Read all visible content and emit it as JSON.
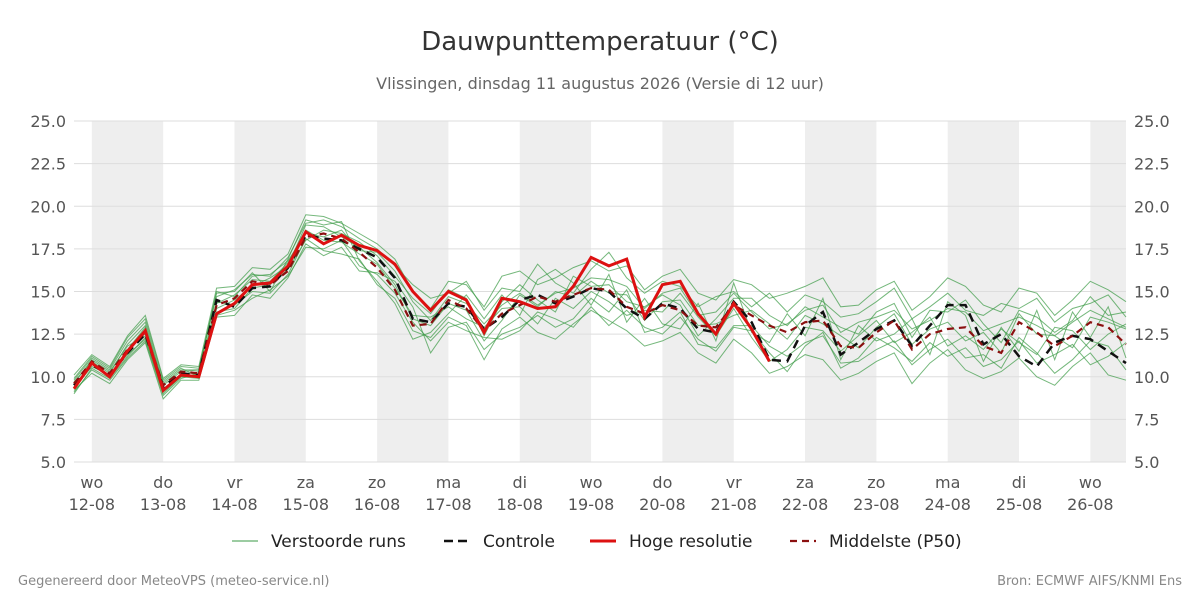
{
  "footer": {
    "left": "Gegenereerd door MeteoVPS (meteo-service.nl)",
    "right": "Bron: ECMWF AIFS/KNMI Ens"
  },
  "chart_data": {
    "type": "line",
    "title": "Dauwpunttemperatuur (°C)",
    "subtitle": "Vlissingen, dinsdag 11 augustus 2026 (Versie di 12 uur)",
    "ylim": [
      5.0,
      25.0
    ],
    "yticks": [
      "5.0",
      "7.5",
      "10.0",
      "12.5",
      "15.0",
      "17.5",
      "20.0",
      "22.5",
      "25.0"
    ],
    "xlim": [
      -0.25,
      14.5
    ],
    "xticks": [
      {
        "day": "wo",
        "date": "12-08"
      },
      {
        "day": "do",
        "date": "13-08"
      },
      {
        "day": "vr",
        "date": "14-08"
      },
      {
        "day": "za",
        "date": "15-08"
      },
      {
        "day": "zo",
        "date": "16-08"
      },
      {
        "day": "ma",
        "date": "17-08"
      },
      {
        "day": "di",
        "date": "18-08"
      },
      {
        "day": "wo",
        "date": "19-08"
      },
      {
        "day": "do",
        "date": "20-08"
      },
      {
        "day": "vr",
        "date": "21-08"
      },
      {
        "day": "za",
        "date": "22-08"
      },
      {
        "day": "zo",
        "date": "23-08"
      },
      {
        "day": "ma",
        "date": "24-08"
      },
      {
        "day": "di",
        "date": "25-08"
      },
      {
        "day": "wo",
        "date": "26-08"
      }
    ],
    "grid": true,
    "legend_position": "bottom",
    "colors": {
      "members": "#3a9a45",
      "control": "#111111",
      "hres": "#dd1111",
      "p50": "#8b1010",
      "band": "#eeeeee",
      "grid": "#dddddd"
    },
    "legend": [
      {
        "name": "Verstoorde runs",
        "style": "thin-green"
      },
      {
        "name": "Controle",
        "style": "dashed-black"
      },
      {
        "name": "Hoge resolutie",
        "style": "solid-red"
      },
      {
        "name": "Middelste (P50)",
        "style": "dashed-darkred"
      }
    ],
    "series": [
      {
        "name": "Hoge resolutie",
        "step": 0.25,
        "x_start": -0.25,
        "values": [
          9.3,
          10.8,
          10.0,
          11.5,
          12.7,
          9.2,
          10.1,
          10.0,
          13.7,
          14.3,
          15.4,
          15.5,
          16.5,
          18.5,
          17.8,
          18.3,
          17.7,
          17.4,
          16.6,
          15.0,
          13.9,
          15.0,
          14.5,
          12.6,
          14.6,
          14.4,
          14.0,
          14.1,
          15.3,
          17.0,
          16.5,
          16.9,
          13.5,
          15.4,
          15.6,
          13.7,
          12.5,
          14.3,
          12.8,
          10.9
        ]
      },
      {
        "name": "Controle",
        "step": 0.25,
        "x_start": -0.25,
        "values": [
          9.5,
          10.7,
          10.1,
          11.4,
          12.5,
          9.4,
          10.2,
          10.1,
          14.5,
          14.1,
          15.2,
          15.3,
          16.4,
          18.3,
          18.1,
          18.0,
          17.5,
          17.0,
          15.8,
          13.4,
          13.2,
          14.3,
          14.1,
          12.8,
          13.5,
          14.5,
          14.8,
          14.3,
          14.7,
          15.2,
          15.0,
          14.0,
          13.4,
          14.3,
          14.0,
          12.8,
          12.6,
          14.4,
          13.2,
          11.0,
          10.9,
          13.0,
          13.8,
          11.3,
          12.0,
          12.8,
          13.3,
          11.8,
          13.0,
          14.2,
          14.2,
          11.9,
          12.5,
          11.2,
          10.6,
          12.0,
          12.4,
          12.2,
          11.5,
          10.8
        ]
      },
      {
        "name": "Middelste (P50)",
        "step": 0.25,
        "x_start": -0.25,
        "values": [
          9.6,
          10.9,
          10.2,
          11.6,
          12.6,
          9.5,
          10.3,
          10.2,
          14.2,
          14.6,
          15.6,
          15.4,
          16.2,
          18.2,
          18.4,
          18.1,
          17.3,
          16.4,
          15.1,
          13.0,
          13.1,
          14.5,
          14.0,
          12.7,
          13.7,
          14.2,
          14.7,
          14.4,
          14.8,
          15.2,
          15.1,
          14.1,
          13.7,
          14.2,
          13.9,
          13.0,
          12.9,
          14.2,
          13.6,
          13.0,
          12.6,
          13.2,
          13.3,
          11.8,
          11.7,
          12.6,
          13.3,
          11.6,
          12.5,
          12.8,
          12.9,
          11.8,
          11.4,
          13.2,
          12.6,
          11.8,
          12.4,
          13.2,
          12.9,
          11.9
        ]
      },
      {
        "name": "Verstoorde runs",
        "step": 0.25,
        "x_start": -0.25,
        "members": [
          [
            9.0,
            10.5,
            9.9,
            11.2,
            12.3,
            9.0,
            10.0,
            10.1,
            14.0,
            14.5,
            15.3,
            15.8,
            16.5,
            18.9,
            18.8,
            18.2,
            17.6,
            16.7,
            15.4,
            13.4,
            13.0,
            14.3,
            13.9,
            12.1,
            13.3,
            14.8,
            14.1,
            15.0,
            14.7,
            15.6,
            14.9,
            14.8,
            13.3,
            14.4,
            14.5,
            13.0,
            13.1,
            13.6,
            13.9,
            13.1,
            12.2,
            13.6,
            13.1,
            12.4,
            11.7,
            12.9,
            13.7,
            11.9,
            12.8,
            13.2,
            12.1,
            12.6,
            11.4,
            13.7,
            12.5,
            12.4,
            11.7,
            13.5,
            13.2,
            12.8
          ],
          [
            9.8,
            11.1,
            10.4,
            12.1,
            13.2,
            9.6,
            10.4,
            10.4,
            14.9,
            15.0,
            16.1,
            15.0,
            16.9,
            19.2,
            18.9,
            19.1,
            16.8,
            15.6,
            14.3,
            12.2,
            12.6,
            13.7,
            14.8,
            13.4,
            14.8,
            13.6,
            15.7,
            16.3,
            15.5,
            14.2,
            16.0,
            13.2,
            14.6,
            13.1,
            12.8,
            14.3,
            12.1,
            15.5,
            12.6,
            12.0,
            13.7,
            12.4,
            14.6,
            11.0,
            13.0,
            12.1,
            12.5,
            13.4,
            11.3,
            14.4,
            13.6,
            10.9,
            12.9,
            11.5,
            13.9,
            11.0,
            13.8,
            12.3,
            14.1,
            11.1
          ],
          [
            9.2,
            10.2,
            9.6,
            11.0,
            12.0,
            8.7,
            9.8,
            9.8,
            13.5,
            13.6,
            14.8,
            14.6,
            15.8,
            17.8,
            17.1,
            17.6,
            16.2,
            16.1,
            15.6,
            14.1,
            11.4,
            12.9,
            13.2,
            11.6,
            12.5,
            12.9,
            13.6,
            12.9,
            13.4,
            14.6,
            13.8,
            15.1,
            12.6,
            12.9,
            13.8,
            11.9,
            11.7,
            13.0,
            13.0,
            11.8,
            11.2,
            12.0,
            12.4,
            10.8,
            10.9,
            11.6,
            12.1,
            10.7,
            11.6,
            12.2,
            11.1,
            11.3,
            10.5,
            12.3,
            11.4,
            10.2,
            11.0,
            12.1,
            11.8,
            10.4
          ],
          [
            10.1,
            11.3,
            10.6,
            12.4,
            13.6,
            9.9,
            10.7,
            10.6,
            15.2,
            15.3,
            16.4,
            16.3,
            17.2,
            19.5,
            19.4,
            19.0,
            18.4,
            17.8,
            16.9,
            15.0,
            14.0,
            15.6,
            15.4,
            14.1,
            15.9,
            16.2,
            15.4,
            15.8,
            16.4,
            16.8,
            16.2,
            16.5,
            15.1,
            15.9,
            16.3,
            14.9,
            14.5,
            15.7,
            15.4,
            14.6,
            14.9,
            15.3,
            15.8,
            14.1,
            14.2,
            15.1,
            15.6,
            13.9,
            14.7,
            15.8,
            15.3,
            14.2,
            13.8,
            15.2,
            14.9,
            13.6,
            14.5,
            15.6,
            15.1,
            14.4
          ],
          [
            9.4,
            10.8,
            10.0,
            11.6,
            12.9,
            9.3,
            10.1,
            10.3,
            14.3,
            14.8,
            15.7,
            15.6,
            16.7,
            18.6,
            18.0,
            17.9,
            17.2,
            16.6,
            15.2,
            13.6,
            13.5,
            14.1,
            13.4,
            12.9,
            14.0,
            14.1,
            13.1,
            14.6,
            14.0,
            15.0,
            14.4,
            13.6,
            13.9,
            13.8,
            14.9,
            13.5,
            12.4,
            14.0,
            12.3,
            10.9,
            11.6,
            12.9,
            12.7,
            11.5,
            12.4,
            13.3,
            12.0,
            12.6,
            13.5,
            11.8,
            12.4,
            11.6,
            12.8,
            12.0,
            11.3,
            12.9,
            12.7,
            11.6,
            12.5,
            13.1
          ],
          [
            9.6,
            11.0,
            10.3,
            11.8,
            12.4,
            9.7,
            10.5,
            10.0,
            13.8,
            14.0,
            15.2,
            15.4,
            16.3,
            18.0,
            18.6,
            18.4,
            17.9,
            17.1,
            15.9,
            14.6,
            13.7,
            15.1,
            14.6,
            12.4,
            14.4,
            15.4,
            14.5,
            13.8,
            15.9,
            15.3,
            15.4,
            14.4,
            14.1,
            14.8,
            14.2,
            12.4,
            13.4,
            14.6,
            14.6,
            13.6,
            13.0,
            14.1,
            13.5,
            12.9,
            12.5,
            13.8,
            14.3,
            12.3,
            13.9,
            13.8,
            14.5,
            13.1,
            12.0,
            13.9,
            13.5,
            12.6,
            13.3,
            14.7,
            13.6,
            13.8
          ],
          [
            9.3,
            10.6,
            10.1,
            11.3,
            12.2,
            9.1,
            10.0,
            9.9,
            14.4,
            14.2,
            15.0,
            14.9,
            16.0,
            18.1,
            17.4,
            17.2,
            16.9,
            15.4,
            14.6,
            12.7,
            12.3,
            13.5,
            13.0,
            11.0,
            12.8,
            13.5,
            12.6,
            12.2,
            13.1,
            13.9,
            13.3,
            12.7,
            11.8,
            12.1,
            12.6,
            11.4,
            10.8,
            12.2,
            11.4,
            10.2,
            10.6,
            11.3,
            11.0,
            9.8,
            10.2,
            10.9,
            11.4,
            9.6,
            10.8,
            11.6,
            10.4,
            9.9,
            10.3,
            11.1,
            10.0,
            9.5,
            10.6,
            11.4,
            10.1,
            9.8
          ],
          [
            9.9,
            11.2,
            10.5,
            12.3,
            13.4,
            9.8,
            10.6,
            10.5,
            14.7,
            15.1,
            16.0,
            15.9,
            17.0,
            19.0,
            19.2,
            18.8,
            18.1,
            17.5,
            16.5,
            15.4,
            14.6,
            14.9,
            15.6,
            13.9,
            15.2,
            15.0,
            16.6,
            15.5,
            14.9,
            16.3,
            17.3,
            15.8,
            14.9,
            15.6,
            15.3,
            14.1,
            14.7,
            15.0,
            14.1,
            14.9,
            13.8,
            14.8,
            14.4,
            13.5,
            13.7,
            14.4,
            15.2,
            13.4,
            14.1,
            14.9,
            13.9,
            13.6,
            14.3,
            14.0,
            14.6,
            13.2,
            14.0,
            14.3,
            14.8,
            13.5
          ],
          [
            9.1,
            10.4,
            9.8,
            11.1,
            12.1,
            8.9,
            9.9,
            10.2,
            13.6,
            13.9,
            14.6,
            15.1,
            15.9,
            17.6,
            17.5,
            18.0,
            16.5,
            16.0,
            14.9,
            13.2,
            12.1,
            13.2,
            12.7,
            12.3,
            12.2,
            12.7,
            13.8,
            13.4,
            12.9,
            14.1,
            13.0,
            13.9,
            12.9,
            12.5,
            13.5,
            12.2,
            11.5,
            12.9,
            12.7,
            11.4,
            10.3,
            11.8,
            12.6,
            10.5,
            11.1,
            12.3,
            11.7,
            10.9,
            12.0,
            11.2,
            11.7,
            10.6,
            11.0,
            12.1,
            10.8,
            11.3,
            11.9,
            10.7,
            11.2,
            12.0
          ],
          [
            9.7,
            10.9,
            10.2,
            11.9,
            13.0,
            9.5,
            10.3,
            10.4,
            15.0,
            14.7,
            15.9,
            16.0,
            16.8,
            18.4,
            18.2,
            18.6,
            17.4,
            17.3,
            16.2,
            14.4,
            13.3,
            14.7,
            14.3,
            13.1,
            14.2,
            14.9,
            14.2,
            14.9,
            15.2,
            15.8,
            15.7,
            15.3,
            14.0,
            14.9,
            15.2,
            13.6,
            13.8,
            14.9,
            13.8,
            12.8,
            13.1,
            13.9,
            14.2,
            12.6,
            13.2,
            13.5,
            13.9,
            12.8,
            13.3,
            14.0,
            13.8,
            12.7,
            13.1,
            13.5,
            13.0,
            12.4,
            13.2,
            13.9,
            13.4,
            12.9
          ]
        ]
      }
    ]
  }
}
